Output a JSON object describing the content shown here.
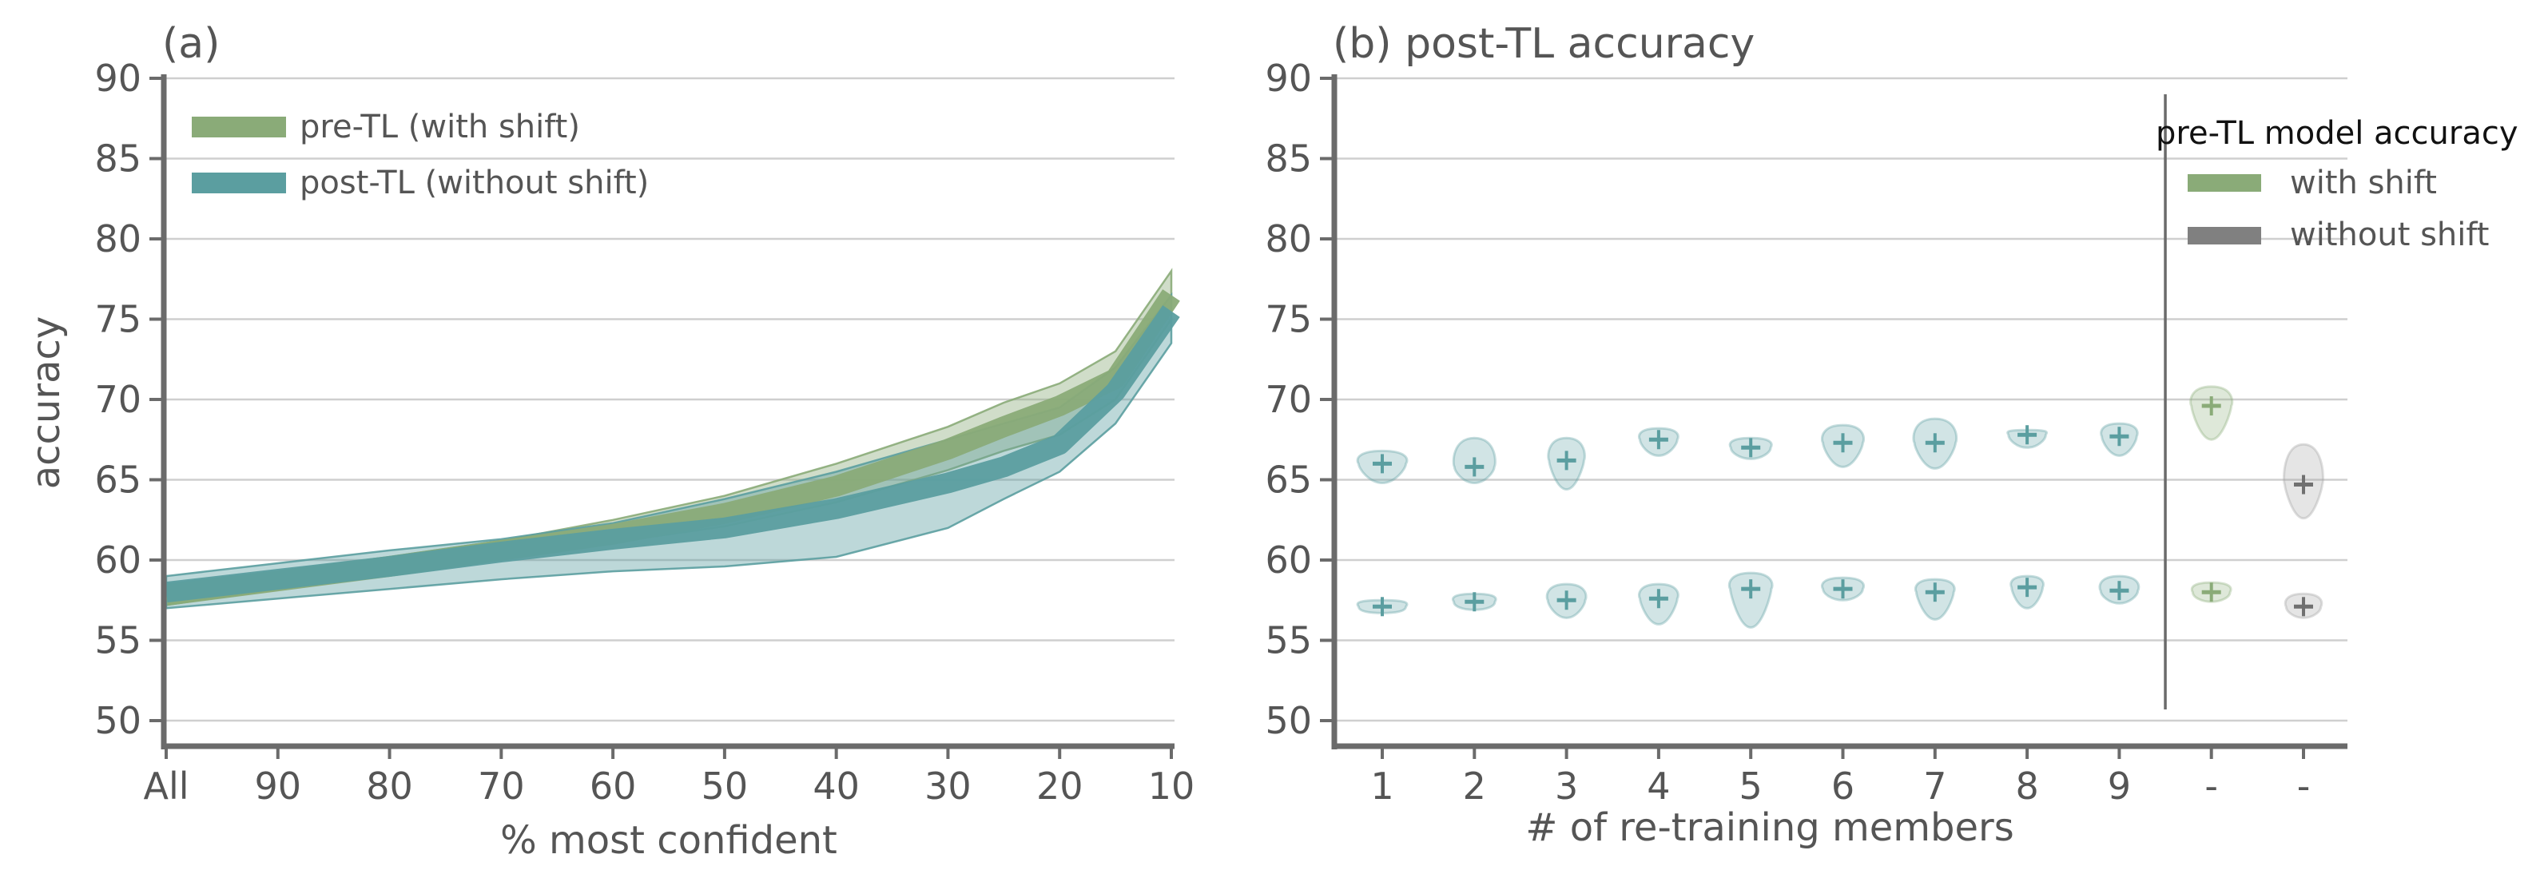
{
  "chart_data": [
    {
      "type": "area",
      "title": "(a)",
      "xlabel": "% most confident",
      "ylabel": "accuracy",
      "x_ticks": [
        "All",
        "90",
        "80",
        "70",
        "60",
        "50",
        "40",
        "30",
        "20",
        "10"
      ],
      "y_ticks": [
        "50",
        "55",
        "60",
        "65",
        "70",
        "75",
        "80",
        "85",
        "90"
      ],
      "ylim": [
        50,
        90
      ],
      "x_reversed": true,
      "grid": "horizontal",
      "legend_position": "top-left",
      "series": [
        {
          "name": "pre-TL (with shift)",
          "color": "#8aab78",
          "x": [
            100,
            90,
            80,
            70,
            60,
            50,
            40,
            30,
            25,
            20,
            15,
            10
          ],
          "mean": [
            57.8,
            58.7,
            59.6,
            60.6,
            61.6,
            62.9,
            64.6,
            66.9,
            68.3,
            69.6,
            71.3,
            76.5
          ],
          "low": [
            57.2,
            58.2,
            59.1,
            60.1,
            61.1,
            62.1,
            63.6,
            65.6,
            66.8,
            67.8,
            70.0,
            75.0
          ],
          "high": [
            58.5,
            59.3,
            60.2,
            61.2,
            62.5,
            64.0,
            66.0,
            68.3,
            69.8,
            71.0,
            73.0,
            78.0
          ]
        },
        {
          "name": "post-TL (without shift)",
          "color": "#5b9ea0",
          "x": [
            100,
            90,
            80,
            70,
            60,
            50,
            40,
            30,
            25,
            20,
            15,
            10
          ],
          "mean": [
            58.0,
            58.8,
            59.6,
            60.5,
            61.3,
            62.0,
            63.2,
            64.8,
            65.8,
            67.2,
            70.5,
            75.5
          ],
          "low": [
            57.0,
            57.6,
            58.2,
            58.8,
            59.3,
            59.6,
            60.2,
            62.0,
            63.8,
            65.5,
            68.5,
            73.5
          ],
          "high": [
            59.0,
            59.8,
            60.6,
            61.3,
            62.3,
            63.8,
            65.5,
            67.5,
            68.5,
            69.5,
            72.0,
            76.5
          ]
        }
      ]
    },
    {
      "type": "violin",
      "title": "(b) post-TL accuracy",
      "xlabel": "# of re-training members",
      "ylabel": "",
      "x_ticks": [
        "1",
        "2",
        "3",
        "4",
        "5",
        "6",
        "7",
        "8",
        "9",
        "-",
        "-"
      ],
      "y_ticks": [
        "50",
        "55",
        "60",
        "65",
        "70",
        "75",
        "80",
        "85",
        "90"
      ],
      "ylim": [
        50,
        90
      ],
      "grid": "horizontal",
      "legend_title": "pre-TL model accuracy",
      "legend_position": "top-right",
      "legend": [
        {
          "name": "with shift",
          "color": "#8aab78"
        },
        {
          "name": "without shift",
          "color": "#808080"
        }
      ],
      "divider_between_ticks": [
        "9",
        "-"
      ],
      "violins": [
        {
          "category": "1",
          "group": "upper",
          "color": "#5b9ea0",
          "median": 66.0,
          "min": 64.8,
          "max": 66.8,
          "half_width": 0.38
        },
        {
          "category": "1",
          "group": "lower",
          "color": "#5b9ea0",
          "median": 57.1,
          "min": 56.7,
          "max": 57.5,
          "half_width": 0.38
        },
        {
          "category": "2",
          "group": "upper",
          "color": "#5b9ea0",
          "median": 65.8,
          "min": 64.8,
          "max": 67.6,
          "half_width": 0.32
        },
        {
          "category": "2",
          "group": "lower",
          "color": "#5b9ea0",
          "median": 57.4,
          "min": 56.9,
          "max": 57.9,
          "half_width": 0.33
        },
        {
          "category": "3",
          "group": "upper",
          "color": "#5b9ea0",
          "median": 66.2,
          "min": 64.4,
          "max": 67.6,
          "half_width": 0.28
        },
        {
          "category": "3",
          "group": "lower",
          "color": "#5b9ea0",
          "median": 57.5,
          "min": 56.4,
          "max": 58.5,
          "half_width": 0.3
        },
        {
          "category": "4",
          "group": "upper",
          "color": "#5b9ea0",
          "median": 67.5,
          "min": 66.5,
          "max": 68.2,
          "half_width": 0.3
        },
        {
          "category": "4",
          "group": "lower",
          "color": "#5b9ea0",
          "median": 57.6,
          "min": 56.0,
          "max": 58.5,
          "half_width": 0.3
        },
        {
          "category": "5",
          "group": "upper",
          "color": "#5b9ea0",
          "median": 67.0,
          "min": 66.3,
          "max": 67.6,
          "half_width": 0.32
        },
        {
          "category": "5",
          "group": "lower",
          "color": "#5b9ea0",
          "median": 58.2,
          "min": 55.8,
          "max": 59.2,
          "half_width": 0.33
        },
        {
          "category": "6",
          "group": "upper",
          "color": "#5b9ea0",
          "median": 67.3,
          "min": 65.8,
          "max": 68.4,
          "half_width": 0.32
        },
        {
          "category": "6",
          "group": "lower",
          "color": "#5b9ea0",
          "median": 58.2,
          "min": 57.5,
          "max": 58.9,
          "half_width": 0.32
        },
        {
          "category": "7",
          "group": "upper",
          "color": "#5b9ea0",
          "median": 67.3,
          "min": 65.7,
          "max": 68.8,
          "half_width": 0.33
        },
        {
          "category": "7",
          "group": "lower",
          "color": "#5b9ea0",
          "median": 58.0,
          "min": 56.3,
          "max": 58.8,
          "half_width": 0.3
        },
        {
          "category": "8",
          "group": "upper",
          "color": "#5b9ea0",
          "median": 67.8,
          "min": 67.0,
          "max": 68.1,
          "half_width": 0.3
        },
        {
          "category": "8",
          "group": "lower",
          "color": "#5b9ea0",
          "median": 58.3,
          "min": 57.0,
          "max": 59.0,
          "half_width": 0.25
        },
        {
          "category": "9",
          "group": "upper",
          "color": "#5b9ea0",
          "median": 67.7,
          "min": 66.5,
          "max": 68.5,
          "half_width": 0.28
        },
        {
          "category": "9",
          "group": "lower",
          "color": "#5b9ea0",
          "median": 58.1,
          "min": 57.3,
          "max": 59.0,
          "half_width": 0.3
        },
        {
          "category": "-",
          "slot": 10,
          "group": "upper",
          "color": "#8aab78",
          "median": 69.6,
          "min": 67.5,
          "max": 70.8,
          "half_width": 0.32
        },
        {
          "category": "-",
          "slot": 10,
          "group": "lower",
          "color": "#8aab78",
          "median": 58.0,
          "min": 57.4,
          "max": 58.6,
          "half_width": 0.3
        },
        {
          "category": "-",
          "slot": 11,
          "group": "upper",
          "color": "#a0a0a0",
          "median": 64.7,
          "min": 62.6,
          "max": 67.2,
          "half_width": 0.3
        },
        {
          "category": "-",
          "slot": 11,
          "group": "lower",
          "color": "#a0a0a0",
          "median": 57.1,
          "min": 56.4,
          "max": 57.9,
          "half_width": 0.28
        }
      ]
    }
  ]
}
